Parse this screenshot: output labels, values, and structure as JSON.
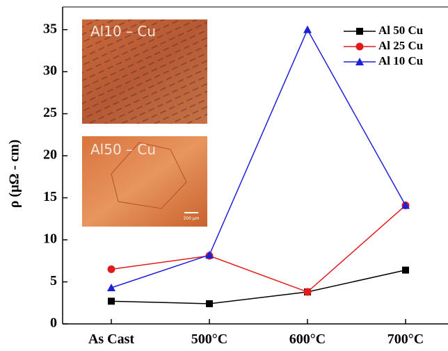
{
  "chart_data": {
    "type": "line",
    "ylabel": "ρ (μΩ - cm)",
    "categories": [
      "As Cast",
      "500°C",
      "600°C",
      "700°C"
    ],
    "series": [
      {
        "name": "Al 50 Cu",
        "color": "#000000",
        "marker": "square",
        "values": [
          2.7,
          2.4,
          3.8,
          6.4
        ]
      },
      {
        "name": "Al 25 Cu",
        "color": "#e31a1c",
        "marker": "circle",
        "values": [
          6.5,
          8.1,
          3.8,
          14.1
        ]
      },
      {
        "name": "Al 10 Cu",
        "color": "#1f1fd6",
        "marker": "triangle",
        "values": [
          4.3,
          8.2,
          35,
          14.1
        ]
      }
    ],
    "ylim": [
      0,
      37.7
    ],
    "yticks": [
      0,
      5,
      10,
      15,
      20,
      25,
      30,
      35
    ],
    "legend": "upper right",
    "annotations": [
      "Al10 – Cu",
      "Al50 – Cu",
      "200 μm"
    ]
  }
}
